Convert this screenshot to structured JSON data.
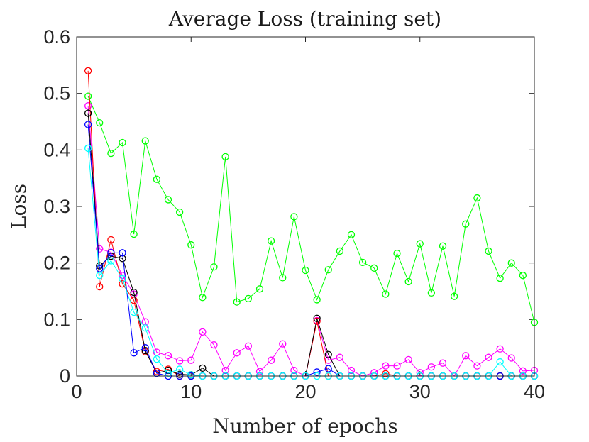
{
  "chart_data": {
    "type": "line",
    "title": "Average Loss (training set)",
    "xlabel": "Number of epochs",
    "ylabel": "Loss",
    "xlim": [
      0,
      40
    ],
    "ylim": [
      0,
      0.6
    ],
    "xticks": [
      0,
      10,
      20,
      30,
      40
    ],
    "xtick_labels": [
      "0",
      "10",
      "20",
      "30",
      "40"
    ],
    "yticks": [
      0,
      0.1,
      0.2,
      0.3,
      0.4,
      0.5,
      0.6
    ],
    "ytick_labels": [
      "0",
      "0.1",
      "0.2",
      "0.3",
      "0.4",
      "0.5",
      "0.6"
    ],
    "grid": false,
    "marker": "circle",
    "x": [
      1,
      2,
      3,
      4,
      5,
      6,
      7,
      8,
      9,
      10,
      11,
      12,
      13,
      14,
      15,
      16,
      17,
      18,
      19,
      20,
      21,
      22,
      23,
      24,
      25,
      26,
      27,
      28,
      29,
      30,
      31,
      32,
      33,
      34,
      35,
      36,
      37,
      38,
      39,
      40
    ],
    "series": [
      {
        "color": "#00ff00",
        "values": [
          0.495,
          0.448,
          0.394,
          0.413,
          0.251,
          0.416,
          0.348,
          0.312,
          0.29,
          0.232,
          0.139,
          0.193,
          0.388,
          0.131,
          0.137,
          0.154,
          0.239,
          0.174,
          0.282,
          0.187,
          0.135,
          0.188,
          0.221,
          0.25,
          0.201,
          0.191,
          0.145,
          0.217,
          0.167,
          0.234,
          0.147,
          0.23,
          0.141,
          0.269,
          0.315,
          0.221,
          0.173,
          0.2,
          0.178,
          0.095
        ]
      },
      {
        "color": "#ff00ff",
        "values": [
          0.478,
          0.225,
          0.219,
          0.178,
          0.145,
          0.096,
          0.042,
          0.036,
          0.027,
          0.028,
          0.078,
          0.055,
          0.01,
          0.041,
          0.053,
          0.008,
          0.028,
          0.057,
          0.01,
          0.0,
          0.098,
          0.028,
          0.033,
          0.01,
          0.0,
          0.006,
          0.018,
          0.018,
          0.029,
          0.006,
          0.016,
          0.023,
          0.0,
          0.036,
          0.018,
          0.033,
          0.048,
          0.032,
          0.009,
          0.01
        ]
      },
      {
        "color": "#ff0000",
        "values": [
          0.54,
          0.158,
          0.241,
          0.163,
          0.134,
          0.043,
          0.008,
          0.012,
          0.0,
          0.0,
          0.0,
          0.0,
          0.0,
          0.0,
          0.0,
          0.0,
          0.0,
          0.0,
          0.0,
          0.0,
          0.097,
          0.0,
          0.0,
          0.0,
          0.0,
          0.0,
          0.004,
          0.0,
          0.0,
          0.0,
          0.0,
          0.0,
          0.0,
          0.0,
          0.0,
          0.0,
          0.0,
          0.0,
          0.0,
          0.0
        ]
      },
      {
        "color": "#000000",
        "values": [
          0.465,
          0.195,
          0.212,
          0.208,
          0.148,
          0.045,
          0.005,
          0.01,
          0.003,
          0.002,
          0.014,
          0.0,
          0.0,
          0.0,
          0.0,
          0.0,
          0.0,
          0.0,
          0.0,
          0.0,
          0.102,
          0.038,
          0.0,
          0.0,
          0.0,
          0.0,
          0.0,
          0.0,
          0.0,
          0.0,
          0.0,
          0.0,
          0.0,
          0.0,
          0.0,
          0.0,
          0.0,
          0.0,
          0.0,
          0.0
        ]
      },
      {
        "color": "#0000ff",
        "values": [
          0.445,
          0.19,
          0.218,
          0.218,
          0.041,
          0.05,
          0.005,
          0.0,
          0.0,
          0.0,
          0.0,
          0.0,
          0.0,
          0.0,
          0.0,
          0.0,
          0.0,
          0.0,
          0.0,
          0.0,
          0.007,
          0.013,
          0.0,
          0.0,
          0.0,
          0.0,
          0.0,
          0.0,
          0.0,
          0.0,
          0.0,
          0.0,
          0.0,
          0.0,
          0.0,
          0.0,
          0.0,
          0.0,
          0.0,
          0.0
        ]
      },
      {
        "color": "#00ffff",
        "values": [
          0.403,
          0.178,
          0.204,
          0.172,
          0.113,
          0.085,
          0.03,
          0.005,
          0.012,
          0.002,
          0.0,
          0.0,
          0.0,
          0.0,
          0.0,
          0.0,
          0.0,
          0.0,
          0.0,
          0.0,
          0.0,
          0.0,
          0.0,
          0.0,
          0.0,
          0.0,
          0.0,
          0.0,
          0.0,
          0.0,
          0.0,
          0.0,
          0.0,
          0.0,
          0.0,
          0.0,
          0.025,
          0.0,
          0.0,
          0.0
        ]
      }
    ]
  }
}
